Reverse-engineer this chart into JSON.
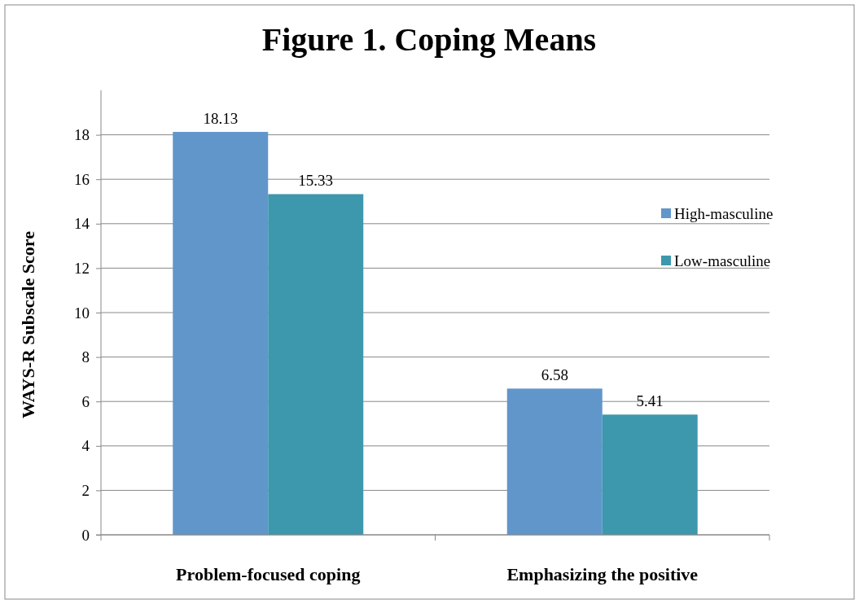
{
  "chart_data": {
    "type": "bar",
    "title": "Figure 1. Coping Means",
    "ylabel": "WAYS-R Subscale Score",
    "categories": [
      "Problem-focused coping",
      "Emphasizing the positive"
    ],
    "series": [
      {
        "name": "High-masculine",
        "color": "#6196cb",
        "values": [
          18.13,
          6.58
        ]
      },
      {
        "name": "Low-masculine",
        "color": "#3d98ad",
        "values": [
          15.33,
          5.41
        ]
      }
    ],
    "ylim": [
      0,
      20
    ],
    "yticks": [
      0,
      2,
      4,
      6,
      8,
      10,
      12,
      14,
      16,
      18
    ],
    "grid": "y",
    "legend": "right",
    "data_labels": true
  }
}
